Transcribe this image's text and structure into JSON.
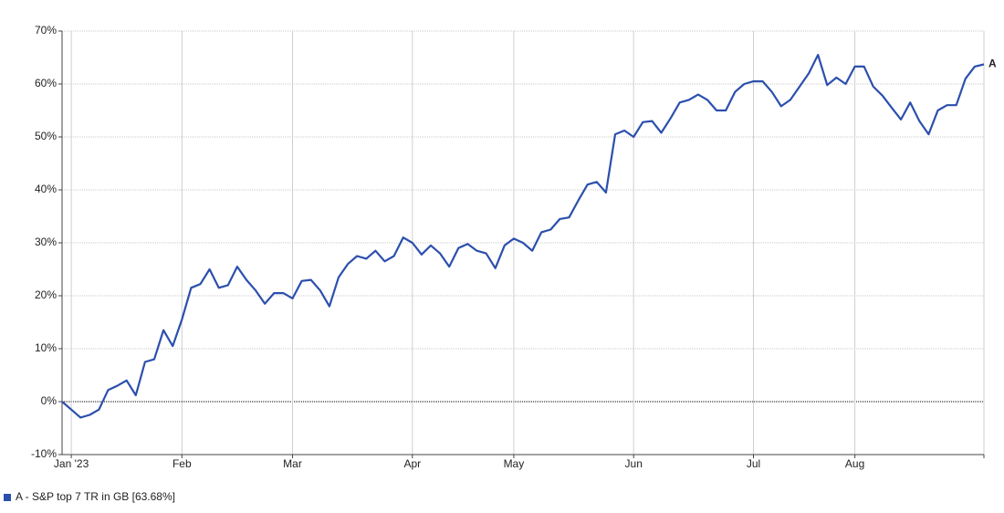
{
  "chart_data": {
    "type": "line",
    "categories": [
      null,
      "Jan '23",
      null,
      null,
      null,
      null,
      null,
      null,
      null,
      null,
      null,
      null,
      null,
      "Feb",
      null,
      null,
      null,
      null,
      null,
      null,
      null,
      null,
      null,
      null,
      null,
      "Mar",
      null,
      null,
      null,
      null,
      null,
      null,
      null,
      null,
      null,
      null,
      null,
      null,
      "Apr",
      null,
      null,
      null,
      null,
      null,
      null,
      null,
      null,
      null,
      null,
      "May",
      null,
      null,
      null,
      null,
      null,
      null,
      null,
      null,
      null,
      null,
      null,
      null,
      "Jun",
      null,
      null,
      null,
      null,
      null,
      null,
      null,
      null,
      null,
      null,
      null,
      null,
      "Jul",
      null,
      null,
      null,
      null,
      null,
      null,
      null,
      null,
      null,
      null,
      "Aug",
      null,
      null,
      null,
      null,
      null,
      null,
      null,
      null,
      null,
      null,
      null,
      null,
      null,
      null
    ],
    "series": [
      {
        "name": "A - S&P top 7 TR in GB [63.68%]",
        "end_label": "A",
        "color": "#2b4fad",
        "values": [
          0,
          -1.5,
          -3.0,
          -2.5,
          -1.5,
          2.2,
          3.0,
          4.0,
          1.2,
          7.5,
          8.0,
          13.5,
          10.5,
          15.5,
          21.5,
          22.2,
          25,
          21.5,
          22,
          25.5,
          23,
          21,
          18.5,
          20.5,
          20.5,
          19.5,
          22.8,
          23,
          21,
          18,
          23.5,
          26,
          27.5,
          27,
          28.5,
          26.5,
          27.5,
          31,
          30,
          27.8,
          29.5,
          28,
          25.5,
          29,
          29.8,
          28.5,
          28,
          25.2,
          29.5,
          30.8,
          30,
          28.5,
          32,
          32.5,
          34.5,
          34.8,
          38,
          41,
          41.5,
          39.5,
          50.5,
          51.2,
          50,
          52.8,
          53,
          50.8,
          53.5,
          56.5,
          57,
          58,
          57,
          55,
          55,
          58.5,
          60,
          60.5,
          60.5,
          58.5,
          55.8,
          57,
          59.5,
          62,
          65.5,
          59.8,
          61.2,
          60,
          63.3,
          63.3,
          59.5,
          57.8,
          55.5,
          53.3,
          56.5,
          53,
          50.5,
          55,
          56,
          56,
          61,
          63.3,
          63.7
        ]
      }
    ],
    "ylim": [
      -10,
      70
    ],
    "yticks": [
      {
        "value": -10,
        "label": "-10%"
      },
      {
        "value": 0,
        "label": "0%"
      },
      {
        "value": 10,
        "label": "10%"
      },
      {
        "value": 20,
        "label": "20%"
      },
      {
        "value": 30,
        "label": "30%"
      },
      {
        "value": 40,
        "label": "40%"
      },
      {
        "value": 50,
        "label": "50%"
      },
      {
        "value": 60,
        "label": "60%"
      },
      {
        "value": 70,
        "label": "70%"
      }
    ],
    "grid": true
  }
}
